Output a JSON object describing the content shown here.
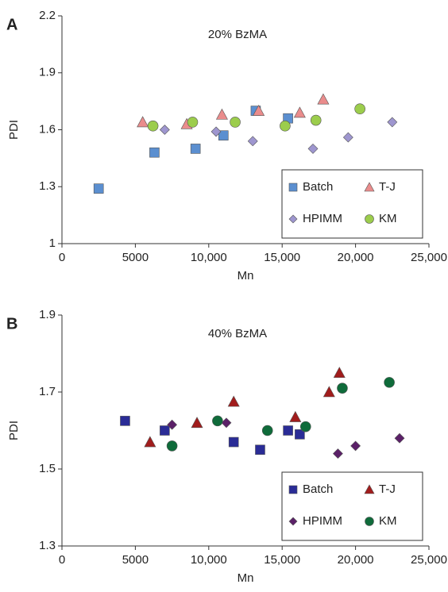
{
  "chart_data": [
    {
      "type": "scatter",
      "panel": "A",
      "title": "20% BzMA",
      "x_label": "Mn",
      "y_label": "PDI",
      "xlim": [
        0,
        25000
      ],
      "xticks": [
        0,
        5000,
        {
          "value": 10000,
          "label": "10,000"
        },
        {
          "value": 15000,
          "label": "15,000"
        },
        {
          "value": 20000,
          "label": "20,000"
        },
        {
          "value": 25000,
          "label": "25,000"
        }
      ],
      "ylim": [
        1,
        2.2
      ],
      "yticks": [
        1,
        1.3,
        1.6,
        1.9,
        2.2
      ],
      "legend": "lower right",
      "series": [
        {
          "name": "Batch",
          "color": "#5b8fd0",
          "marker": "square",
          "x": [
            2500,
            6300,
            9100,
            11000,
            13200,
            15400
          ],
          "values": [
            1.29,
            1.48,
            1.5,
            1.57,
            1.7,
            1.66
          ]
        },
        {
          "name": "T-J",
          "color": "#ea8c8c",
          "marker": "triangle",
          "x": [
            5500,
            8500,
            10900,
            13400,
            16200,
            17800
          ],
          "values": [
            1.64,
            1.63,
            1.68,
            1.7,
            1.69,
            1.76
          ]
        },
        {
          "name": "HPIMM",
          "color": "#9e96cf",
          "marker": "diamond",
          "x": [
            7000,
            10500,
            13000,
            17100,
            19500,
            22500
          ],
          "values": [
            1.6,
            1.59,
            1.54,
            1.5,
            1.56,
            1.64
          ]
        },
        {
          "name": "KM",
          "color": "#9ccd4c",
          "marker": "circle",
          "x": [
            6200,
            8900,
            11800,
            15200,
            17300,
            20300
          ],
          "values": [
            1.62,
            1.64,
            1.64,
            1.62,
            1.65,
            1.71
          ]
        }
      ]
    },
    {
      "type": "scatter",
      "panel": "B",
      "title": "40% BzMA",
      "x_label": "Mn",
      "y_label": "PDI",
      "xlim": [
        0,
        25000
      ],
      "xticks": [
        0,
        5000,
        {
          "value": 10000,
          "label": "10,000"
        },
        {
          "value": 15000,
          "label": "15,000"
        },
        {
          "value": 20000,
          "label": "20,000"
        },
        {
          "value": 25000,
          "label": "25,000"
        }
      ],
      "ylim": [
        1.3,
        1.9
      ],
      "yticks": [
        1.3,
        1.5,
        1.7,
        1.9
      ],
      "legend": "lower right",
      "series": [
        {
          "name": "Batch",
          "color": "#2a2c96",
          "marker": "square",
          "x": [
            4300,
            7000,
            11700,
            13500,
            15400,
            16200
          ],
          "values": [
            1.625,
            1.6,
            1.57,
            1.55,
            1.6,
            1.59
          ]
        },
        {
          "name": "T-J",
          "color": "#a11c1c",
          "marker": "triangle",
          "x": [
            6000,
            9200,
            11700,
            15900,
            18200,
            18900
          ],
          "values": [
            1.57,
            1.62,
            1.675,
            1.635,
            1.7,
            1.75
          ]
        },
        {
          "name": "HPIMM",
          "color": "#5b2068",
          "marker": "diamond",
          "x": [
            7500,
            11200,
            18800,
            20000,
            23000
          ],
          "values": [
            1.615,
            1.62,
            1.54,
            1.56,
            1.58
          ]
        },
        {
          "name": "KM",
          "color": "#0f6b3a",
          "marker": "circle",
          "x": [
            7500,
            10600,
            14000,
            16600,
            19100,
            22300
          ],
          "values": [
            1.56,
            1.625,
            1.6,
            1.61,
            1.71,
            1.725
          ]
        }
      ]
    }
  ]
}
